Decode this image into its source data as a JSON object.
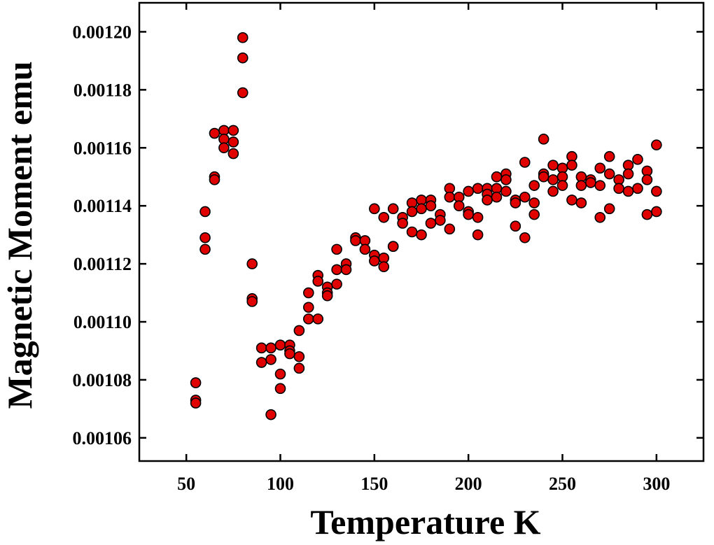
{
  "chart_data": {
    "type": "scatter",
    "title": "",
    "xlabel": "Temperature K",
    "ylabel": "Magnetic Moment emu",
    "xlim": [
      25,
      325
    ],
    "ylim": [
      0.001052,
      0.00121
    ],
    "xticks": [
      50,
      100,
      150,
      200,
      250,
      300
    ],
    "xtick_labels": [
      "50",
      "100",
      "150",
      "200",
      "250",
      "300"
    ],
    "yticks": [
      0.00106,
      0.00108,
      0.0011,
      0.00112,
      0.00114,
      0.00116,
      0.00118,
      0.0012
    ],
    "ytick_labels": [
      "0.00106",
      "0.00108",
      "0.00110",
      "0.00112",
      "0.00114",
      "0.00116",
      "0.00118",
      "0.00120"
    ],
    "grid": false,
    "legend": "none",
    "marker_color": "#e00000",
    "marker_edge_color": "#000000",
    "series": [
      {
        "points": [
          [
            55,
            0.001079
          ],
          [
            55,
            0.001073
          ],
          [
            55,
            0.001072
          ],
          [
            60,
            0.001138
          ],
          [
            60,
            0.001129
          ],
          [
            60,
            0.001125
          ],
          [
            65,
            0.001165
          ],
          [
            65,
            0.00115
          ],
          [
            65,
            0.001149
          ],
          [
            70,
            0.001166
          ],
          [
            70,
            0.001163
          ],
          [
            70,
            0.00116
          ],
          [
            75,
            0.001166
          ],
          [
            75,
            0.001162
          ],
          [
            75,
            0.001158
          ],
          [
            80,
            0.001198
          ],
          [
            80,
            0.001191
          ],
          [
            80,
            0.001179
          ],
          [
            85,
            0.00112
          ],
          [
            85,
            0.001108
          ],
          [
            85,
            0.001107
          ],
          [
            90,
            0.001091
          ],
          [
            90,
            0.001086
          ],
          [
            95,
            0.001091
          ],
          [
            95,
            0.001087
          ],
          [
            95,
            0.001068
          ],
          [
            100,
            0.001092
          ],
          [
            100,
            0.001082
          ],
          [
            100,
            0.001077
          ],
          [
            105,
            0.001092
          ],
          [
            105,
            0.00109
          ],
          [
            105,
            0.001089
          ],
          [
            110,
            0.001097
          ],
          [
            110,
            0.001088
          ],
          [
            110,
            0.001084
          ],
          [
            115,
            0.00111
          ],
          [
            115,
            0.001105
          ],
          [
            115,
            0.001101
          ],
          [
            120,
            0.001116
          ],
          [
            120,
            0.001114
          ],
          [
            120,
            0.001101
          ],
          [
            125,
            0.001112
          ],
          [
            125,
            0.00111
          ],
          [
            125,
            0.001109
          ],
          [
            130,
            0.001125
          ],
          [
            130,
            0.001118
          ],
          [
            130,
            0.001113
          ],
          [
            135,
            0.00112
          ],
          [
            135,
            0.001118
          ],
          [
            140,
            0.001129
          ],
          [
            140,
            0.001128
          ],
          [
            145,
            0.001128
          ],
          [
            145,
            0.001125
          ],
          [
            150,
            0.001139
          ],
          [
            150,
            0.001123
          ],
          [
            150,
            0.001121
          ],
          [
            155,
            0.001136
          ],
          [
            155,
            0.001122
          ],
          [
            155,
            0.001119
          ],
          [
            160,
            0.001139
          ],
          [
            160,
            0.001126
          ],
          [
            160,
            0.001126
          ],
          [
            165,
            0.001136
          ],
          [
            165,
            0.001134
          ],
          [
            170,
            0.001141
          ],
          [
            170,
            0.001138
          ],
          [
            170,
            0.001131
          ],
          [
            175,
            0.001142
          ],
          [
            175,
            0.001139
          ],
          [
            175,
            0.00113
          ],
          [
            180,
            0.001142
          ],
          [
            180,
            0.00114
          ],
          [
            180,
            0.001134
          ],
          [
            185,
            0.001137
          ],
          [
            185,
            0.001135
          ],
          [
            190,
            0.001146
          ],
          [
            190,
            0.001143
          ],
          [
            190,
            0.001132
          ],
          [
            195,
            0.001143
          ],
          [
            195,
            0.00114
          ],
          [
            200,
            0.001145
          ],
          [
            200,
            0.001138
          ],
          [
            200,
            0.001137
          ],
          [
            205,
            0.001146
          ],
          [
            205,
            0.001136
          ],
          [
            205,
            0.00113
          ],
          [
            210,
            0.001146
          ],
          [
            210,
            0.001144
          ],
          [
            210,
            0.001142
          ],
          [
            215,
            0.00115
          ],
          [
            215,
            0.001146
          ],
          [
            215,
            0.001143
          ],
          [
            220,
            0.001151
          ],
          [
            220,
            0.001149
          ],
          [
            220,
            0.001145
          ],
          [
            225,
            0.001142
          ],
          [
            225,
            0.001141
          ],
          [
            225,
            0.001133
          ],
          [
            230,
            0.001155
          ],
          [
            230,
            0.001143
          ],
          [
            230,
            0.001129
          ],
          [
            235,
            0.001147
          ],
          [
            235,
            0.001141
          ],
          [
            235,
            0.001137
          ],
          [
            240,
            0.001163
          ],
          [
            240,
            0.001151
          ],
          [
            240,
            0.00115
          ],
          [
            245,
            0.001154
          ],
          [
            245,
            0.001149
          ],
          [
            245,
            0.001145
          ],
          [
            250,
            0.001153
          ],
          [
            250,
            0.00115
          ],
          [
            250,
            0.001147
          ],
          [
            255,
            0.001157
          ],
          [
            255,
            0.001154
          ],
          [
            255,
            0.001142
          ],
          [
            260,
            0.00115
          ],
          [
            260,
            0.001147
          ],
          [
            260,
            0.001141
          ],
          [
            265,
            0.001149
          ],
          [
            265,
            0.001148
          ],
          [
            270,
            0.001153
          ],
          [
            270,
            0.001147
          ],
          [
            270,
            0.001136
          ],
          [
            275,
            0.001157
          ],
          [
            275,
            0.001151
          ],
          [
            275,
            0.001139
          ],
          [
            280,
            0.001149
          ],
          [
            280,
            0.001146
          ],
          [
            285,
            0.001154
          ],
          [
            285,
            0.001151
          ],
          [
            285,
            0.001145
          ],
          [
            290,
            0.001156
          ],
          [
            290,
            0.001146
          ],
          [
            295,
            0.001152
          ],
          [
            295,
            0.001149
          ],
          [
            295,
            0.001137
          ],
          [
            300,
            0.001161
          ],
          [
            300,
            0.001145
          ],
          [
            300,
            0.001138
          ]
        ]
      }
    ]
  }
}
